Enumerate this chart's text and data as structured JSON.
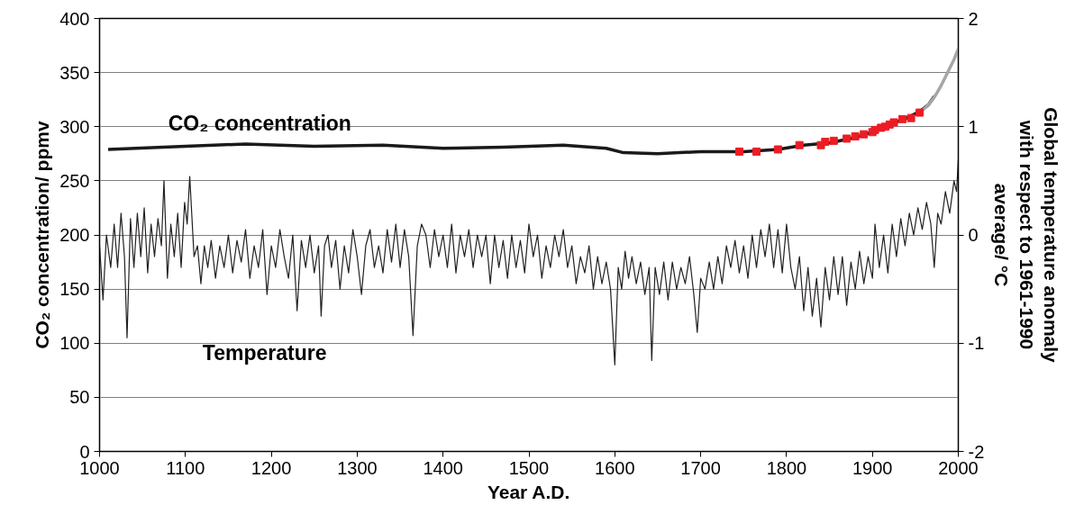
{
  "chart_data": {
    "type": "line",
    "xlabel": "Year A.D.",
    "ylabel": "CO₂ concentration/ ppmv",
    "y2label": "Global temperature anomaly with respect to 1961-1990 average/ °C",
    "xlim": [
      1000,
      2000
    ],
    "xticks": [
      1000,
      1100,
      1200,
      1300,
      1400,
      1500,
      1600,
      1700,
      1800,
      1900,
      2000
    ],
    "ylim": [
      0,
      400
    ],
    "yticks": [
      0,
      50,
      100,
      150,
      200,
      250,
      300,
      350,
      400
    ],
    "y2lim": [
      -2,
      2
    ],
    "y2ticks": [
      -2,
      -1,
      0,
      1,
      2
    ],
    "grid": "y",
    "series": [
      {
        "name": "CO₂ concentration",
        "color": "#1a1a1a",
        "x": [
          1010,
          1100,
          1170,
          1250,
          1330,
          1400,
          1470,
          1540,
          1590,
          1610,
          1650,
          1700,
          1750,
          1790,
          1820,
          1850,
          1880,
          1900,
          1920,
          1940,
          1955,
          1965,
          1972
        ],
        "values": [
          279,
          282,
          284,
          282,
          283,
          280,
          281,
          283,
          280,
          276,
          275,
          277,
          277,
          279,
          283,
          285,
          290,
          295,
          302,
          308,
          314,
          320,
          328
        ]
      },
      {
        "color": "#a6a6a6",
        "x": [
          1958,
          1965,
          1970,
          1975,
          1980,
          1985,
          1990,
          1995,
          2000
        ],
        "values": [
          315,
          320,
          325,
          331,
          338,
          346,
          354,
          362,
          372
        ]
      },
      {
        "type": "scatter",
        "marker": "square",
        "color": "#ed1c24",
        "x": [
          1745,
          1765,
          1790,
          1815,
          1840,
          1845,
          1855,
          1870,
          1880,
          1890,
          1900,
          1903,
          1910,
          1915,
          1920,
          1925,
          1935,
          1945,
          1955
        ],
        "values": [
          277,
          277,
          279,
          283,
          283,
          286,
          287,
          289,
          291,
          293,
          295,
          297,
          299,
          300,
          302,
          304,
          307,
          308,
          313
        ]
      },
      {
        "name": "Temperature",
        "axis": "y2",
        "color": "#231f20",
        "x": [
          1000,
          1004,
          1008,
          1013,
          1017,
          1021,
          1025,
          1029,
          1032,
          1036,
          1040,
          1044,
          1048,
          1052,
          1056,
          1060,
          1064,
          1068,
          1072,
          1075,
          1079,
          1083,
          1087,
          1091,
          1095,
          1099,
          1102,
          1105,
          1110,
          1114,
          1118,
          1122,
          1126,
          1130,
          1135,
          1140,
          1145,
          1150,
          1155,
          1160,
          1165,
          1170,
          1175,
          1180,
          1185,
          1190,
          1195,
          1200,
          1205,
          1210,
          1215,
          1220,
          1225,
          1230,
          1235,
          1240,
          1245,
          1250,
          1255,
          1258,
          1262,
          1266,
          1270,
          1275,
          1280,
          1285,
          1290,
          1295,
          1300,
          1305,
          1310,
          1315,
          1320,
          1325,
          1330,
          1335,
          1340,
          1345,
          1350,
          1355,
          1360,
          1365,
          1370,
          1375,
          1380,
          1385,
          1390,
          1395,
          1400,
          1405,
          1410,
          1415,
          1420,
          1425,
          1430,
          1435,
          1440,
          1445,
          1450,
          1455,
          1460,
          1465,
          1470,
          1475,
          1480,
          1485,
          1490,
          1495,
          1500,
          1505,
          1510,
          1515,
          1520,
          1525,
          1530,
          1535,
          1540,
          1545,
          1550,
          1555,
          1560,
          1565,
          1570,
          1575,
          1580,
          1585,
          1590,
          1595,
          1600,
          1604,
          1608,
          1612,
          1616,
          1620,
          1625,
          1630,
          1635,
          1640,
          1643,
          1647,
          1652,
          1657,
          1662,
          1667,
          1672,
          1677,
          1682,
          1687,
          1692,
          1696,
          1700,
          1705,
          1710,
          1715,
          1720,
          1725,
          1730,
          1735,
          1740,
          1745,
          1750,
          1755,
          1760,
          1765,
          1770,
          1775,
          1780,
          1785,
          1790,
          1795,
          1800,
          1805,
          1810,
          1815,
          1820,
          1825,
          1830,
          1835,
          1840,
          1845,
          1850,
          1855,
          1860,
          1865,
          1870,
          1875,
          1880,
          1885,
          1890,
          1895,
          1900,
          1903,
          1908,
          1913,
          1918,
          1923,
          1928,
          1933,
          1938,
          1943,
          1948,
          1953,
          1958,
          1963,
          1968,
          1972,
          1976,
          1980,
          1985,
          1990,
          1995,
          1998,
          2000
        ],
        "values": [
          -0.1,
          -0.6,
          0.0,
          -0.3,
          0.1,
          -0.3,
          0.2,
          -0.2,
          -0.95,
          0.15,
          -0.3,
          0.2,
          -0.2,
          0.25,
          -0.35,
          0.1,
          -0.2,
          0.15,
          -0.1,
          0.5,
          -0.4,
          0.1,
          -0.2,
          0.2,
          -0.3,
          0.3,
          0.1,
          0.54,
          -0.2,
          -0.1,
          -0.45,
          -0.1,
          -0.3,
          -0.05,
          -0.4,
          -0.1,
          -0.3,
          0.0,
          -0.35,
          -0.05,
          -0.25,
          0.05,
          -0.4,
          -0.1,
          -0.3,
          0.05,
          -0.55,
          -0.1,
          -0.3,
          0.05,
          -0.2,
          -0.4,
          0.0,
          -0.7,
          -0.05,
          -0.3,
          0.0,
          -0.35,
          -0.1,
          -0.75,
          -0.1,
          0.0,
          -0.3,
          -0.05,
          -0.5,
          -0.1,
          -0.35,
          0.05,
          -0.2,
          -0.55,
          -0.1,
          0.05,
          -0.3,
          -0.1,
          -0.35,
          0.05,
          -0.25,
          0.1,
          -0.3,
          0.05,
          -0.2,
          -0.93,
          -0.1,
          0.1,
          0.0,
          -0.3,
          0.05,
          -0.2,
          0.0,
          -0.3,
          0.1,
          -0.35,
          0.0,
          -0.2,
          0.05,
          -0.3,
          0.0,
          -0.2,
          0.0,
          -0.45,
          0.0,
          -0.3,
          -0.05,
          -0.4,
          0.0,
          -0.3,
          -0.05,
          -0.35,
          0.1,
          -0.2,
          0.0,
          -0.4,
          -0.1,
          -0.3,
          0.0,
          -0.2,
          0.05,
          -0.3,
          -0.1,
          -0.45,
          -0.2,
          -0.35,
          -0.1,
          -0.5,
          -0.2,
          -0.45,
          -0.25,
          -0.5,
          -1.2,
          -0.3,
          -0.5,
          -0.15,
          -0.4,
          -0.2,
          -0.45,
          -0.25,
          -0.55,
          -0.3,
          -1.16,
          -0.3,
          -0.55,
          -0.25,
          -0.6,
          -0.25,
          -0.5,
          -0.3,
          -0.45,
          -0.2,
          -0.55,
          -0.9,
          -0.4,
          -0.5,
          -0.25,
          -0.5,
          -0.2,
          -0.45,
          -0.1,
          -0.3,
          -0.05,
          -0.35,
          -0.1,
          -0.4,
          0.0,
          -0.3,
          0.05,
          -0.2,
          0.1,
          -0.3,
          0.05,
          -0.35,
          0.1,
          -0.3,
          -0.5,
          -0.2,
          -0.7,
          -0.3,
          -0.75,
          -0.4,
          -0.85,
          -0.3,
          -0.6,
          -0.2,
          -0.55,
          -0.2,
          -0.65,
          -0.25,
          -0.5,
          -0.15,
          -0.45,
          -0.2,
          -0.4,
          0.1,
          -0.3,
          0.0,
          -0.35,
          0.1,
          -0.2,
          0.15,
          -0.1,
          0.2,
          0.0,
          0.25,
          0.05,
          0.3,
          0.1,
          -0.3,
          0.2,
          0.1,
          0.4,
          0.2,
          0.5,
          0.4,
          0.7
        ]
      }
    ]
  }
}
